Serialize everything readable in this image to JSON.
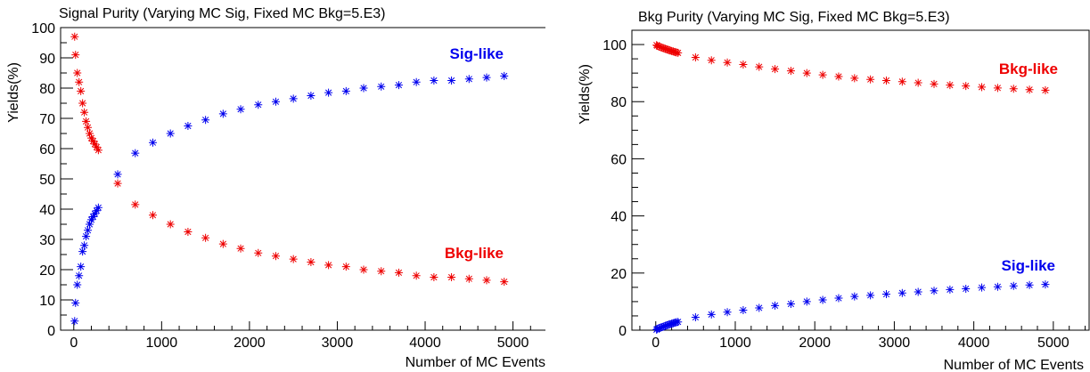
{
  "chart_data": [
    {
      "type": "scatter",
      "title": "Signal Purity (Varying MC Sig, Fixed MC Bkg=5.E3)",
      "xlabel": "Number of MC Events",
      "ylabel": "Yields(%)",
      "xlim": [
        -150,
        5400
      ],
      "ylim": [
        0,
        100
      ],
      "x_ticks": [
        0,
        1000,
        2000,
        3000,
        4000,
        5000
      ],
      "y_ticks": [
        0,
        10,
        20,
        30,
        40,
        50,
        60,
        70,
        80,
        90,
        100
      ],
      "grid": false,
      "marker": "asterisk",
      "series": [
        {
          "name": "Sig-like",
          "color": "#0000ee",
          "points": [
            [
              10,
              3
            ],
            [
              20,
              9
            ],
            [
              40,
              15
            ],
            [
              60,
              18
            ],
            [
              80,
              21
            ],
            [
              100,
              26
            ],
            [
              120,
              28
            ],
            [
              140,
              31
            ],
            [
              160,
              33
            ],
            [
              180,
              35
            ],
            [
              200,
              36.5
            ],
            [
              220,
              37.5
            ],
            [
              240,
              38.5
            ],
            [
              260,
              39.5
            ],
            [
              280,
              40.5
            ],
            [
              500,
              51.5
            ],
            [
              700,
              58.5
            ],
            [
              900,
              62
            ],
            [
              1100,
              65
            ],
            [
              1300,
              67.5
            ],
            [
              1500,
              69.5
            ],
            [
              1700,
              71.5
            ],
            [
              1900,
              73
            ],
            [
              2100,
              74.5
            ],
            [
              2300,
              75.5
            ],
            [
              2500,
              76.5
            ],
            [
              2700,
              77.5
            ],
            [
              2900,
              78.5
            ],
            [
              3100,
              79
            ],
            [
              3300,
              80
            ],
            [
              3500,
              80.5
            ],
            [
              3700,
              81
            ],
            [
              3900,
              82
            ],
            [
              4100,
              82.5
            ],
            [
              4300,
              82.5
            ],
            [
              4500,
              83
            ],
            [
              4700,
              83.5
            ],
            [
              4900,
              84
            ]
          ]
        },
        {
          "name": "Bkg-like",
          "color": "#ee0000",
          "points": [
            [
              10,
              97
            ],
            [
              20,
              91
            ],
            [
              40,
              85
            ],
            [
              60,
              82
            ],
            [
              80,
              79
            ],
            [
              100,
              75
            ],
            [
              120,
              72
            ],
            [
              140,
              69
            ],
            [
              160,
              67
            ],
            [
              180,
              65
            ],
            [
              200,
              63.5
            ],
            [
              220,
              62.5
            ],
            [
              240,
              61.5
            ],
            [
              260,
              60.5
            ],
            [
              280,
              59.5
            ],
            [
              500,
              48.5
            ],
            [
              700,
              41.5
            ],
            [
              900,
              38
            ],
            [
              1100,
              35
            ],
            [
              1300,
              32.5
            ],
            [
              1500,
              30.5
            ],
            [
              1700,
              28.5
            ],
            [
              1900,
              27
            ],
            [
              2100,
              25.5
            ],
            [
              2300,
              24.5
            ],
            [
              2500,
              23.5
            ],
            [
              2700,
              22.5
            ],
            [
              2900,
              21.5
            ],
            [
              3100,
              21
            ],
            [
              3300,
              20
            ],
            [
              3500,
              19.5
            ],
            [
              3700,
              19
            ],
            [
              3900,
              18
            ],
            [
              4100,
              17.5
            ],
            [
              4300,
              17.5
            ],
            [
              4500,
              17
            ],
            [
              4700,
              16.5
            ],
            [
              4900,
              16
            ]
          ]
        }
      ]
    },
    {
      "type": "scatter",
      "title": "Bkg Purity (Varying MC Sig, Fixed MC Bkg=5.E3)",
      "xlabel": "Number of MC Events",
      "ylabel": "Yields(%)",
      "xlim": [
        -300,
        5450
      ],
      "ylim": [
        0,
        105
      ],
      "x_ticks": [
        0,
        1000,
        2000,
        3000,
        4000,
        5000
      ],
      "y_ticks": [
        0,
        20,
        40,
        60,
        80,
        100
      ],
      "grid": false,
      "marker": "asterisk",
      "series": [
        {
          "name": "Sig-like",
          "color": "#0000ee",
          "points": [
            [
              10,
              0.2
            ],
            [
              20,
              0.4
            ],
            [
              40,
              0.7
            ],
            [
              60,
              0.9
            ],
            [
              80,
              1.1
            ],
            [
              100,
              1.3
            ],
            [
              120,
              1.5
            ],
            [
              140,
              1.7
            ],
            [
              160,
              1.9
            ],
            [
              180,
              2.1
            ],
            [
              200,
              2.3
            ],
            [
              220,
              2.4
            ],
            [
              240,
              2.6
            ],
            [
              260,
              2.8
            ],
            [
              280,
              2.9
            ],
            [
              500,
              4.5
            ],
            [
              700,
              5.5
            ],
            [
              900,
              6.3
            ],
            [
              1100,
              7
            ],
            [
              1300,
              7.8
            ],
            [
              1500,
              8.6
            ],
            [
              1700,
              9.2
            ],
            [
              1900,
              10
            ],
            [
              2100,
              10.6
            ],
            [
              2300,
              11.2
            ],
            [
              2500,
              11.8
            ],
            [
              2700,
              12.2
            ],
            [
              2900,
              12.6
            ],
            [
              3100,
              13
            ],
            [
              3300,
              13.4
            ],
            [
              3500,
              13.8
            ],
            [
              3700,
              14.2
            ],
            [
              3900,
              14.5
            ],
            [
              4100,
              14.9
            ],
            [
              4300,
              15.2
            ],
            [
              4500,
              15.5
            ],
            [
              4700,
              15.8
            ],
            [
              4900,
              16
            ]
          ]
        },
        {
          "name": "Bkg-like",
          "color": "#ee0000",
          "points": [
            [
              10,
              99.8
            ],
            [
              20,
              99.6
            ],
            [
              40,
              99.3
            ],
            [
              60,
              99.1
            ],
            [
              80,
              98.9
            ],
            [
              100,
              98.7
            ],
            [
              120,
              98.5
            ],
            [
              140,
              98.3
            ],
            [
              160,
              98.1
            ],
            [
              180,
              97.9
            ],
            [
              200,
              97.7
            ],
            [
              220,
              97.6
            ],
            [
              240,
              97.4
            ],
            [
              260,
              97.2
            ],
            [
              280,
              97.1
            ],
            [
              500,
              95.5
            ],
            [
              700,
              94.5
            ],
            [
              900,
              93.7
            ],
            [
              1100,
              93
            ],
            [
              1300,
              92.2
            ],
            [
              1500,
              91.4
            ],
            [
              1700,
              90.8
            ],
            [
              1900,
              90
            ],
            [
              2100,
              89.4
            ],
            [
              2300,
              88.8
            ],
            [
              2500,
              88.2
            ],
            [
              2700,
              87.8
            ],
            [
              2900,
              87.4
            ],
            [
              3100,
              87
            ],
            [
              3300,
              86.6
            ],
            [
              3500,
              86.2
            ],
            [
              3700,
              85.8
            ],
            [
              3900,
              85.5
            ],
            [
              4100,
              85.1
            ],
            [
              4300,
              84.8
            ],
            [
              4500,
              84.5
            ],
            [
              4700,
              84.2
            ],
            [
              4900,
              84
            ]
          ]
        }
      ]
    }
  ]
}
